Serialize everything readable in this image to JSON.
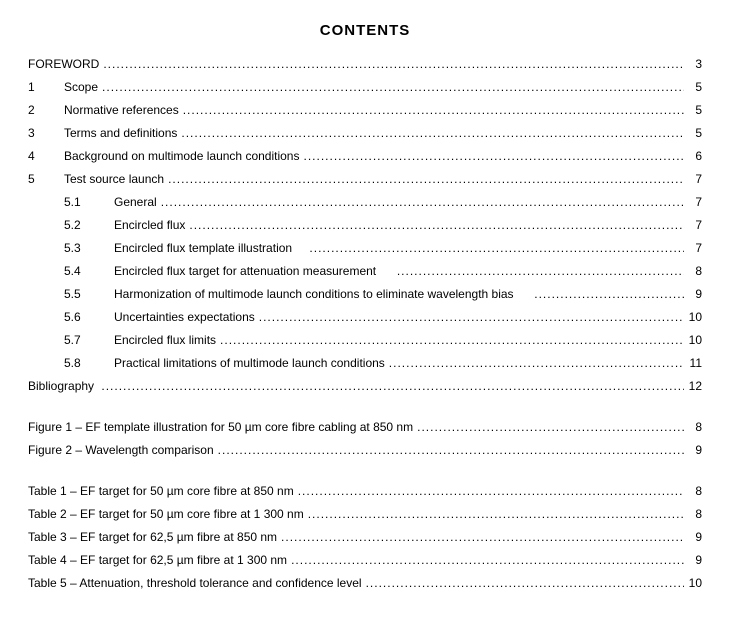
{
  "title": "CONTENTS",
  "indent": {
    "level1": 0,
    "level1num": 36,
    "level2": 36,
    "level2num": 50
  },
  "entries": [
    {
      "type": "line",
      "indent": 0,
      "num": "",
      "label": "FOREWORD",
      "page": "3"
    },
    {
      "type": "line",
      "indent": 0,
      "num": "1",
      "numw": 36,
      "label": "Scope",
      "page": "5"
    },
    {
      "type": "line",
      "indent": 0,
      "num": "2",
      "numw": 36,
      "label": "Normative references",
      "page": "5"
    },
    {
      "type": "line",
      "indent": 0,
      "num": "3",
      "numw": 36,
      "label": "Terms and definitions",
      "page": "5"
    },
    {
      "type": "line",
      "indent": 0,
      "num": "4",
      "numw": 36,
      "label": "Background on multimode launch conditions",
      "page": "6"
    },
    {
      "type": "line",
      "indent": 0,
      "num": "5",
      "numw": 36,
      "label": "Test source launch",
      "page": "7"
    },
    {
      "type": "line",
      "indent": 36,
      "num": "5.1",
      "numw": 50,
      "label": "General",
      "page": "7"
    },
    {
      "type": "line",
      "indent": 36,
      "num": "5.2",
      "numw": 50,
      "label": "Encircled flux",
      "page": "7"
    },
    {
      "type": "line",
      "indent": 36,
      "num": "5.3",
      "numw": 50,
      "label": "Encircled flux template illustration    ",
      "page": "7"
    },
    {
      "type": "line",
      "indent": 36,
      "num": "5.4",
      "numw": 50,
      "label": "Encircled flux target for attenuation measurement     ",
      "page": "8"
    },
    {
      "type": "line",
      "indent": 36,
      "num": "5.5",
      "numw": 50,
      "label": "Harmonization of multimode launch conditions to eliminate wavelength bias     ",
      "page": "9"
    },
    {
      "type": "line",
      "indent": 36,
      "num": "5.6",
      "numw": 50,
      "label": "Uncertainties expectations",
      "page": "10"
    },
    {
      "type": "line",
      "indent": 36,
      "num": "5.7",
      "numw": 50,
      "label": "Encircled flux limits",
      "page": "10"
    },
    {
      "type": "line",
      "indent": 36,
      "num": "5.8",
      "numw": 50,
      "label": "Practical limitations of multimode launch conditions",
      "page": "11"
    },
    {
      "type": "line",
      "indent": 0,
      "num": "",
      "label": "Bibliography ",
      "page": "12"
    },
    {
      "type": "gap",
      "size": "md"
    },
    {
      "type": "line",
      "indent": 0,
      "num": "",
      "label": "Figure 1 – EF template illustration for 50 µm core fibre cabling at 850 nm",
      "page": "8"
    },
    {
      "type": "line",
      "indent": 0,
      "num": "",
      "label": "Figure 2 – Wavelength comparison",
      "page": "9"
    },
    {
      "type": "gap",
      "size": "md"
    },
    {
      "type": "line",
      "indent": 0,
      "num": "",
      "label": "Table 1 – EF target for 50 µm core fibre at 850 nm",
      "page": "8"
    },
    {
      "type": "line",
      "indent": 0,
      "num": "",
      "label": "Table 2 – EF target for 50 µm core fibre at 1 300 nm",
      "page": "8"
    },
    {
      "type": "line",
      "indent": 0,
      "num": "",
      "label": "Table 3 – EF target for 62,5 µm fibre at 850 nm",
      "page": "9"
    },
    {
      "type": "line",
      "indent": 0,
      "num": "",
      "label": "Table 4 – EF target for 62,5 µm fibre at 1 300 nm",
      "page": "9"
    },
    {
      "type": "line",
      "indent": 0,
      "num": "",
      "label": "Table 5 – Attenuation, threshold tolerance and confidence level",
      "page": "10"
    }
  ]
}
